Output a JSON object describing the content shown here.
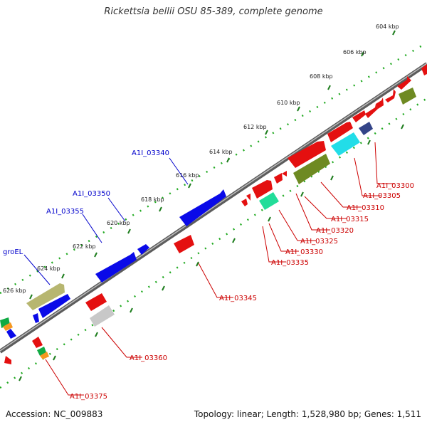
{
  "title": "Rickettsia bellii OSU 85-389, complete genome",
  "footer": {
    "accession": "Accession: NC_009883",
    "stats": "Topology: linear; Length: 1,528,980 bp; Genes: 1,511"
  },
  "colors": {
    "backbone": "#808080",
    "track": "#22aa22",
    "label_blue": "#0000cc",
    "label_red": "#cc0000"
  },
  "ticks": [
    "604 kbp",
    "606 kbp",
    "608 kbp",
    "610 kbp",
    "612 kbp",
    "614 kbp",
    "616 kbp",
    "618 kbp",
    "620 kbp",
    "622 kbp",
    "624 kbp",
    "626 kbp"
  ],
  "gene_labels": [
    {
      "text": "A1I_03340",
      "color": "blue"
    },
    {
      "text": "A1I_03350",
      "color": "blue"
    },
    {
      "text": "A1I_03355",
      "color": "blue"
    },
    {
      "text": "groEL",
      "color": "blue"
    },
    {
      "text": "A1I_03300",
      "color": "red"
    },
    {
      "text": "A1I_03305",
      "color": "red"
    },
    {
      "text": "A1I_03310",
      "color": "red"
    },
    {
      "text": "A1I_03315",
      "color": "red"
    },
    {
      "text": "A1I_03320",
      "color": "red"
    },
    {
      "text": "A1I_03325",
      "color": "red"
    },
    {
      "text": "A1I_03330",
      "color": "red"
    },
    {
      "text": "A1I_03335",
      "color": "red"
    },
    {
      "text": "A1I_03345",
      "color": "red"
    },
    {
      "text": "A1I_03360",
      "color": "red"
    },
    {
      "text": "A1I_03375",
      "color": "red"
    }
  ]
}
